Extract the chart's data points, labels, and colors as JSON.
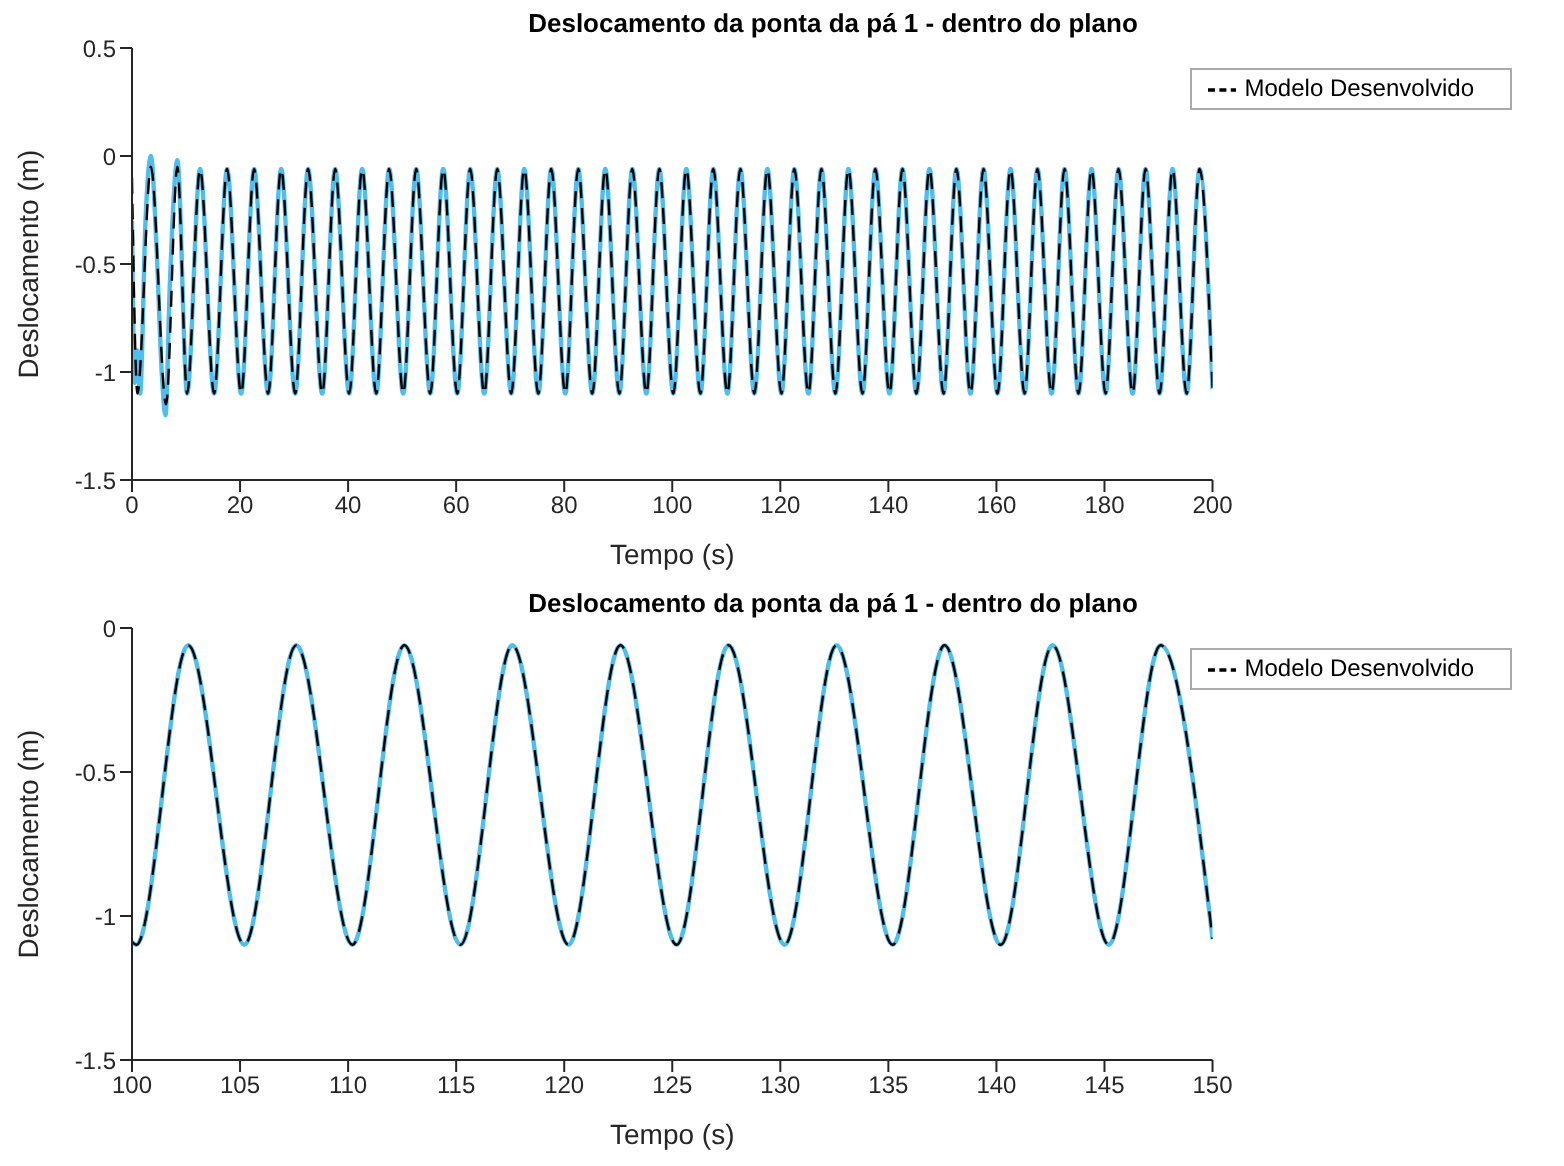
{
  "chart_data": [
    {
      "type": "line",
      "title": "Deslocamento da ponta da pá 1 - dentro do plano",
      "xlabel": "Tempo (s)",
      "ylabel": "Deslocamento (m)",
      "xlim": [
        0,
        200
      ],
      "xticks": [
        0,
        20,
        40,
        60,
        80,
        100,
        120,
        140,
        160,
        180,
        200
      ],
      "ylim": [
        -1.5,
        0.5
      ],
      "yticks": [
        -1.5,
        -1,
        -0.5,
        0,
        0.5
      ],
      "legend": "top right",
      "marker": "none",
      "series": [
        {
          "color": "#4dbeee",
          "line_style": "solid",
          "x": [
            0,
            0.5,
            1,
            1.5,
            2.5,
            3.5,
            4.5,
            5.5,
            6.2,
            7,
            8.4,
            10.2,
            12.6,
            15.2,
            17.6,
            20.2,
            22.6,
            25.2,
            27.6,
            30.2,
            32.6,
            35.2,
            37.6,
            40.2,
            42.6,
            45.2,
            47.6,
            50.2,
            52.6,
            55.2,
            57.6,
            60.2,
            62.6,
            65.2,
            67.6,
            70.2,
            72.6,
            75.2,
            77.6,
            80.2,
            82.6,
            85.2,
            87.6,
            90.2,
            92.6,
            95.2,
            97.6,
            100.2,
            102.6,
            105.2,
            107.6,
            110.2,
            112.6,
            115.2,
            117.6,
            120.2,
            122.6,
            125.2,
            127.6,
            130.2,
            132.6,
            135.2,
            137.6,
            140.2,
            142.6,
            145.2,
            147.6,
            150.2,
            152.6,
            155.2,
            157.6,
            160.2,
            162.6,
            165.2,
            167.6,
            170.2,
            172.6,
            175.2,
            177.6,
            180.2,
            182.6,
            185.2,
            187.6,
            190.2,
            192.6,
            195.2,
            197.6,
            200
          ],
          "values": [
            -0.3,
            -1.05,
            -0.9,
            -1.1,
            -0.3,
            0,
            -0.4,
            -1,
            -1.2,
            -0.6,
            -0.02,
            -1.1,
            -0.06,
            -1.1,
            -0.06,
            -1.1,
            -0.06,
            -1.1,
            -0.06,
            -1.1,
            -0.06,
            -1.1,
            -0.06,
            -1.1,
            -0.06,
            -1.1,
            -0.06,
            -1.1,
            -0.06,
            -1.1,
            -0.06,
            -1.1,
            -0.06,
            -1.1,
            -0.06,
            -1.1,
            -0.06,
            -1.1,
            -0.06,
            -1.1,
            -0.06,
            -1.1,
            -0.06,
            -1.1,
            -0.06,
            -1.1,
            -0.06,
            -1.1,
            -0.06,
            -1.1,
            -0.06,
            -1.1,
            -0.06,
            -1.1,
            -0.06,
            -1.1,
            -0.06,
            -1.1,
            -0.06,
            -1.1,
            -0.06,
            -1.1,
            -0.06,
            -1.1,
            -0.06,
            -1.1,
            -0.06,
            -1.1,
            -0.06,
            -1.1,
            -0.06,
            -1.1,
            -0.06,
            -1.1,
            -0.06,
            -1.1,
            -0.06,
            -1.1,
            -0.06,
            -1.1,
            -0.06,
            -1.1,
            -0.06,
            -1.1,
            -0.06,
            -1.1,
            -0.06,
            -1.08
          ]
        },
        {
          "name": "Modelo Desenvolvido",
          "color": "#000000",
          "line_style": "dashed",
          "x": [
            0,
            1,
            3.5,
            6.3,
            8.4,
            10.2,
            12.6,
            15.2,
            17.6,
            20.2,
            22.6,
            25.2,
            27.6,
            30.2,
            32.6,
            35.2,
            37.6,
            40.2,
            42.6,
            45.2,
            47.6,
            50.2,
            52.6,
            55.2,
            57.6,
            60.2,
            62.6,
            65.2,
            67.6,
            70.2,
            72.6,
            75.2,
            77.6,
            80.2,
            82.6,
            85.2,
            87.6,
            90.2,
            92.6,
            95.2,
            97.6,
            100.2,
            102.6,
            105.2,
            107.6,
            110.2,
            112.6,
            115.2,
            117.6,
            120.2,
            122.6,
            125.2,
            127.6,
            130.2,
            132.6,
            135.2,
            137.6,
            140.2,
            142.6,
            145.2,
            147.6,
            150.2,
            152.6,
            155.2,
            157.6,
            160.2,
            162.6,
            165.2,
            167.6,
            170.2,
            172.6,
            175.2,
            177.6,
            180.2,
            182.6,
            185.2,
            187.6,
            190.2,
            192.6,
            195.2,
            197.6,
            200
          ],
          "values": [
            -0.1,
            -1.1,
            -0.05,
            -1.15,
            -0.05,
            -1.1,
            -0.06,
            -1.1,
            -0.06,
            -1.1,
            -0.06,
            -1.1,
            -0.06,
            -1.1,
            -0.06,
            -1.1,
            -0.06,
            -1.1,
            -0.06,
            -1.1,
            -0.06,
            -1.1,
            -0.06,
            -1.1,
            -0.06,
            -1.1,
            -0.06,
            -1.1,
            -0.06,
            -1.1,
            -0.06,
            -1.1,
            -0.06,
            -1.1,
            -0.06,
            -1.1,
            -0.06,
            -1.1,
            -0.06,
            -1.1,
            -0.06,
            -1.1,
            -0.06,
            -1.1,
            -0.06,
            -1.1,
            -0.06,
            -1.1,
            -0.06,
            -1.1,
            -0.06,
            -1.1,
            -0.06,
            -1.1,
            -0.06,
            -1.1,
            -0.06,
            -1.1,
            -0.06,
            -1.1,
            -0.06,
            -1.1,
            -0.06,
            -1.1,
            -0.06,
            -1.1,
            -0.06,
            -1.1,
            -0.06,
            -1.1,
            -0.06,
            -1.1,
            -0.06,
            -1.1,
            -0.06,
            -1.1,
            -0.06,
            -1.1,
            -0.06,
            -1.1,
            -0.06,
            -1.08
          ]
        }
      ]
    },
    {
      "type": "line",
      "title": "Deslocamento da ponta da pá 1 - dentro do plano",
      "xlabel": "Tempo (s)",
      "ylabel": "Deslocamento (m)",
      "xlim": [
        100,
        150
      ],
      "xticks": [
        100,
        105,
        110,
        115,
        120,
        125,
        130,
        135,
        140,
        145,
        150
      ],
      "ylim": [
        -1.5,
        0
      ],
      "yticks": [
        -1.5,
        -1,
        -0.5,
        0
      ],
      "legend": "top right",
      "marker": "none",
      "series": [
        {
          "color": "#4dbeee",
          "line_style": "solid",
          "x": [
            100,
            100.2,
            102.6,
            105.2,
            107.6,
            110.2,
            112.6,
            115.2,
            117.6,
            120.2,
            122.6,
            125.2,
            127.6,
            130.2,
            132.6,
            135.2,
            137.6,
            140.2,
            142.6,
            145.2,
            147.6,
            150
          ],
          "values": [
            -1.09,
            -1.1,
            -0.06,
            -1.1,
            -0.06,
            -1.1,
            -0.06,
            -1.1,
            -0.06,
            -1.1,
            -0.06,
            -1.1,
            -0.06,
            -1.1,
            -0.06,
            -1.1,
            -0.06,
            -1.1,
            -0.06,
            -1.1,
            -0.06,
            -1.08
          ]
        },
        {
          "name": "Modelo Desenvolvido",
          "color": "#000000",
          "line_style": "dashed",
          "x": [
            100,
            100.2,
            102.6,
            105.2,
            107.6,
            110.2,
            112.6,
            115.2,
            117.6,
            120.2,
            122.6,
            125.2,
            127.6,
            130.2,
            132.6,
            135.2,
            137.6,
            140.2,
            142.6,
            145.2,
            147.6,
            150
          ],
          "values": [
            -1.09,
            -1.1,
            -0.06,
            -1.1,
            -0.06,
            -1.1,
            -0.06,
            -1.1,
            -0.06,
            -1.1,
            -0.06,
            -1.1,
            -0.06,
            -1.1,
            -0.06,
            -1.1,
            -0.06,
            -1.1,
            -0.06,
            -1.1,
            -0.06,
            -1.08
          ]
        }
      ]
    }
  ]
}
